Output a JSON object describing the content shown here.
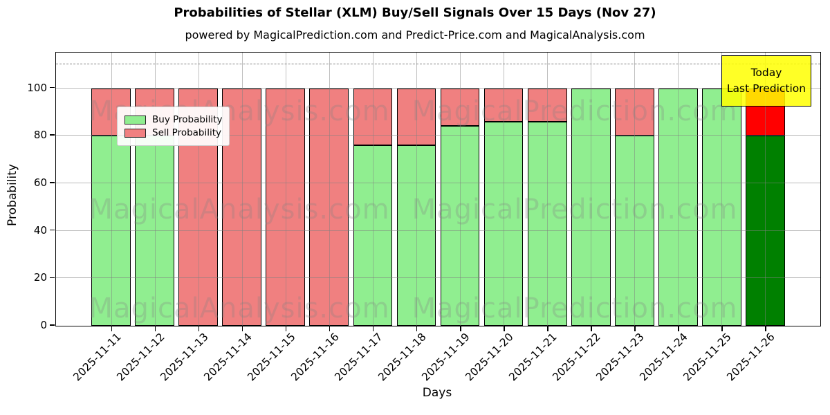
{
  "title": "Probabilities of Stellar (XLM) Buy/Sell Signals Over 15 Days (Nov 27)",
  "subtitle": "powered by MagicalPrediction.com and Predict-Price.com and MagicalAnalysis.com",
  "xlabel": "Days",
  "ylabel": "Probability",
  "legend": [
    {
      "label": "Buy Probability",
      "color": "#90EE90"
    },
    {
      "label": "Sell Probability",
      "color": "#F08080"
    }
  ],
  "annotation": {
    "line1": "Today",
    "line2": "Last Prediction",
    "bg_color": "#FFFF00"
  },
  "watermarks": {
    "left": "MagicalAnalysis.com",
    "right": "MagicalPrediction.com"
  },
  "chart_data": {
    "type": "bar",
    "stacked": true,
    "title": "Probabilities of Stellar (XLM) Buy/Sell Signals Over 15 Days (Nov 27)",
    "xlabel": "Days",
    "ylabel": "Probability",
    "categories": [
      "2025-11-11",
      "2025-11-12",
      "2025-11-13",
      "2025-11-14",
      "2025-11-15",
      "2025-11-16",
      "2025-11-17",
      "2025-11-18",
      "2025-11-19",
      "2025-11-20",
      "2025-11-21",
      "2025-11-22",
      "2025-11-23",
      "2025-11-24",
      "2025-11-25",
      "2025-11-26"
    ],
    "series": [
      {
        "name": "Buy Probability",
        "color": "#90EE90",
        "values": [
          80,
          80,
          0,
          0,
          0,
          0,
          76,
          76,
          84,
          86,
          86,
          100,
          80,
          100,
          100,
          80
        ]
      },
      {
        "name": "Sell Probability",
        "color": "#F08080",
        "values": [
          20,
          20,
          100,
          100,
          100,
          100,
          24,
          24,
          16,
          14,
          14,
          0,
          20,
          0,
          0,
          20
        ]
      }
    ],
    "today_bar": {
      "category": "2025-11-26",
      "buy_color": "#008000",
      "sell_color": "#FF0000"
    },
    "bar_edge_color": "#000000",
    "yticks": [
      0,
      20,
      40,
      60,
      80,
      100
    ],
    "ylim": [
      0,
      115
    ],
    "dashed_line_y": 110,
    "grid": true,
    "legend_position": "upper left"
  }
}
